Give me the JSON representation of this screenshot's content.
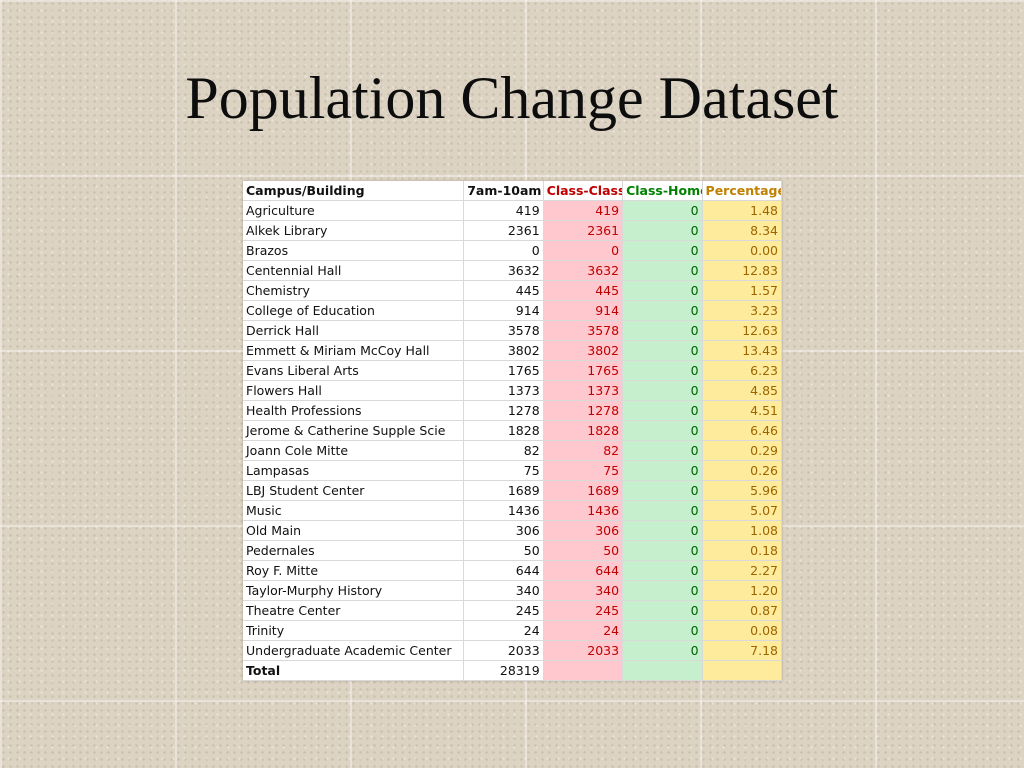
{
  "slide": {
    "title": "Population Change Dataset"
  },
  "table": {
    "headers": {
      "name": "Campus/Building",
      "am": "7am-10am",
      "cc": "Class-Class",
      "ch": "Class-Home",
      "pc": "Percentage"
    },
    "header_colors": {
      "cc": "#c00000",
      "ch": "#008000",
      "pc": "#c08000"
    },
    "rows": [
      {
        "name": "Agriculture",
        "am": "419",
        "cc": "419",
        "ch": "0",
        "pc": "1.48"
      },
      {
        "name": "Alkek Library",
        "am": "2361",
        "cc": "2361",
        "ch": "0",
        "pc": "8.34"
      },
      {
        "name": "Brazos",
        "am": "0",
        "cc": "0",
        "ch": "0",
        "pc": "0.00"
      },
      {
        "name": "Centennial Hall",
        "am": "3632",
        "cc": "3632",
        "ch": "0",
        "pc": "12.83"
      },
      {
        "name": "Chemistry",
        "am": "445",
        "cc": "445",
        "ch": "0",
        "pc": "1.57"
      },
      {
        "name": "College of Education",
        "am": "914",
        "cc": "914",
        "ch": "0",
        "pc": "3.23"
      },
      {
        "name": "Derrick Hall",
        "am": "3578",
        "cc": "3578",
        "ch": "0",
        "pc": "12.63"
      },
      {
        "name": "Emmett & Miriam McCoy Hall",
        "am": "3802",
        "cc": "3802",
        "ch": "0",
        "pc": "13.43"
      },
      {
        "name": "Evans Liberal Arts",
        "am": "1765",
        "cc": "1765",
        "ch": "0",
        "pc": "6.23"
      },
      {
        "name": "Flowers Hall",
        "am": "1373",
        "cc": "1373",
        "ch": "0",
        "pc": "4.85"
      },
      {
        "name": "Health Professions",
        "am": "1278",
        "cc": "1278",
        "ch": "0",
        "pc": "4.51"
      },
      {
        "name": "Jerome & Catherine Supple Scie",
        "am": "1828",
        "cc": "1828",
        "ch": "0",
        "pc": "6.46"
      },
      {
        "name": "Joann Cole Mitte",
        "am": "82",
        "cc": "82",
        "ch": "0",
        "pc": "0.29"
      },
      {
        "name": "Lampasas",
        "am": "75",
        "cc": "75",
        "ch": "0",
        "pc": "0.26"
      },
      {
        "name": "LBJ Student Center",
        "am": "1689",
        "cc": "1689",
        "ch": "0",
        "pc": "5.96"
      },
      {
        "name": "Music",
        "am": "1436",
        "cc": "1436",
        "ch": "0",
        "pc": "5.07"
      },
      {
        "name": "Old Main",
        "am": "306",
        "cc": "306",
        "ch": "0",
        "pc": "1.08"
      },
      {
        "name": "Pedernales",
        "am": "50",
        "cc": "50",
        "ch": "0",
        "pc": "0.18"
      },
      {
        "name": "Roy F. Mitte",
        "am": "644",
        "cc": "644",
        "ch": "0",
        "pc": "2.27"
      },
      {
        "name": "Taylor-Murphy History",
        "am": "340",
        "cc": "340",
        "ch": "0",
        "pc": "1.20"
      },
      {
        "name": "Theatre Center",
        "am": "245",
        "cc": "245",
        "ch": "0",
        "pc": "0.87"
      },
      {
        "name": "Trinity",
        "am": "24",
        "cc": "24",
        "ch": "0",
        "pc": "0.08"
      },
      {
        "name": "Undergraduate Academic Center",
        "am": "2033",
        "cc": "2033",
        "ch": "0",
        "pc": "7.18"
      }
    ],
    "total": {
      "name": "Total",
      "am": "28319"
    }
  }
}
